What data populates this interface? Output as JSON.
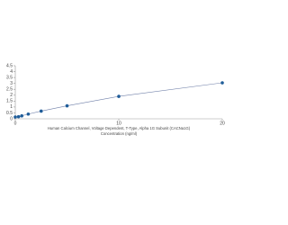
{
  "chart_data": {
    "type": "scatter",
    "x_label": "Human Calcium Channel, Voltage Dependent, T-Type, Alpha 1G Subunit (CACNa1G)",
    "x_label_2": "Concentration (ng/ml)",
    "x": [
      0,
      0.312,
      0.625,
      1.25,
      2.5,
      5,
      10,
      20
    ],
    "values": [
      0.15,
      0.18,
      0.25,
      0.4,
      0.65,
      1.1,
      1.9,
      3.05
    ],
    "color": "#1f5d99",
    "line_color": "#6f7fa8",
    "xlim": [
      0,
      20
    ],
    "xticks": [
      0,
      10,
      20
    ],
    "ylim": [
      0,
      4.5
    ],
    "yticks": [
      0,
      0.5,
      1,
      1.5,
      2,
      2.5,
      3,
      3.5,
      4,
      4.5
    ]
  }
}
